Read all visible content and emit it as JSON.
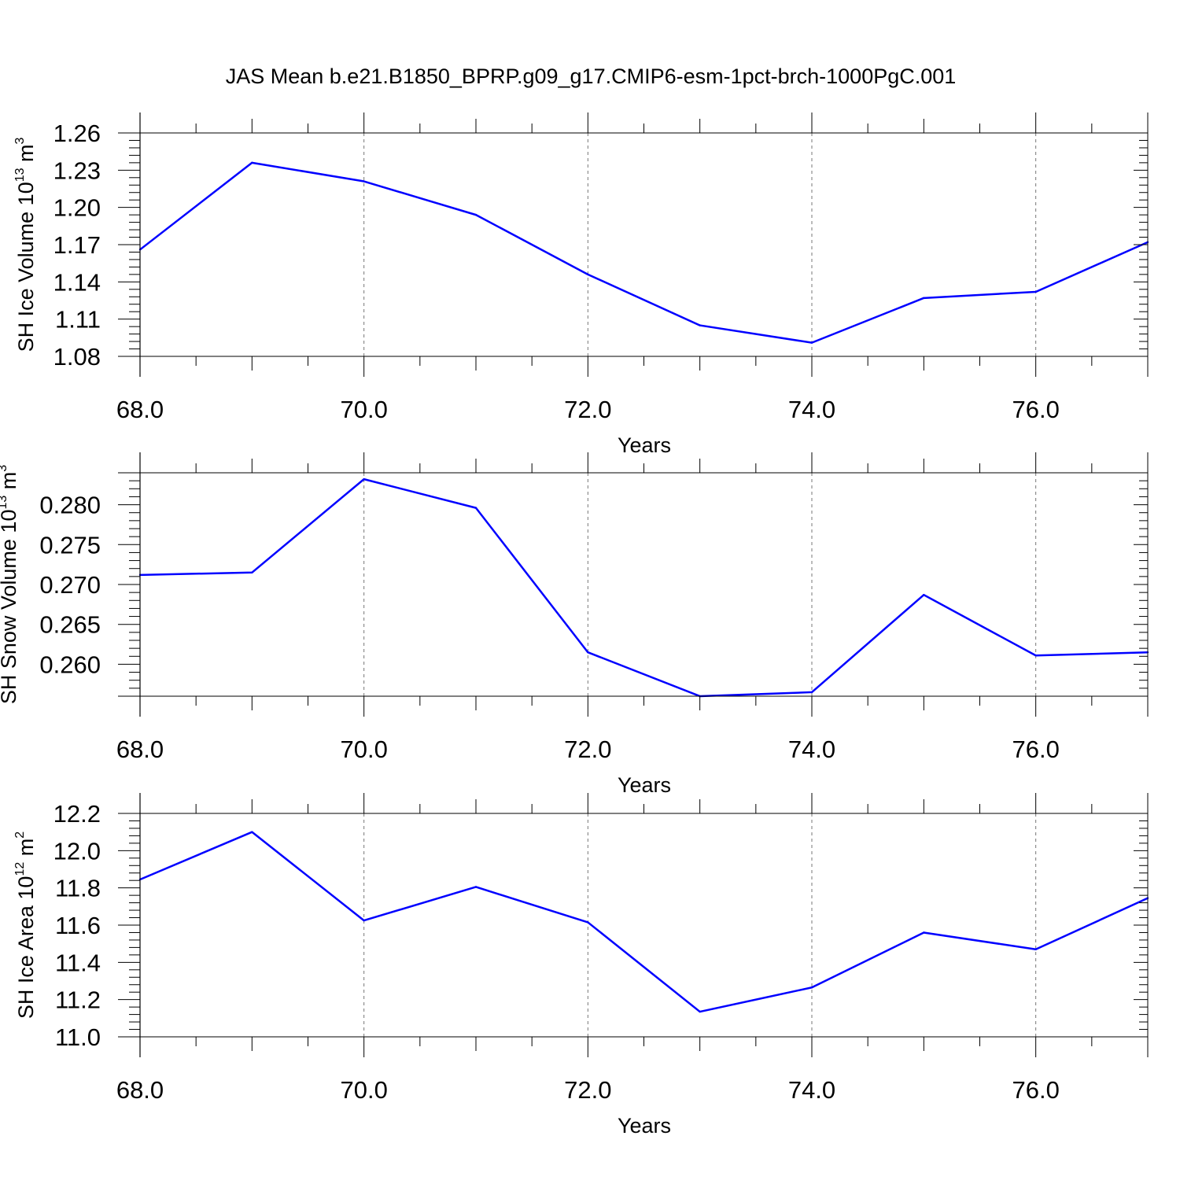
{
  "title": "JAS Mean b.e21.B1850_BPRP.g09_g17.CMIP6-esm-1pct-brch-1000PgC.001",
  "line_color": "#0000ff",
  "chart_data": [
    {
      "type": "line",
      "ylabel_main": "SH Ice Volume 10",
      "ylabel_exp": "13",
      "ylabel_unit": " m",
      "ylabel_unit_exp": "3",
      "xlabel": "Years",
      "xlim": [
        68,
        77
      ],
      "ylim": [
        1.08,
        1.26
      ],
      "x_ticks": [
        "68.0",
        "70.0",
        "72.0",
        "74.0",
        "76.0"
      ],
      "y_ticks": [
        "1.08",
        "1.11",
        "1.14",
        "1.17",
        "1.20",
        "1.23",
        "1.26"
      ],
      "x": [
        68,
        69,
        70,
        71,
        72,
        73,
        74,
        75,
        76,
        77
      ],
      "values": [
        1.166,
        1.236,
        1.221,
        1.194,
        1.146,
        1.105,
        1.091,
        1.127,
        1.132,
        1.172
      ]
    },
    {
      "type": "line",
      "ylabel_main": "SH Snow Volume 10",
      "ylabel_exp": "13",
      "ylabel_unit": " m",
      "ylabel_unit_exp": "3",
      "xlabel": "Years",
      "xlim": [
        68,
        77
      ],
      "ylim": [
        0.256,
        0.284
      ],
      "x_ticks": [
        "68.0",
        "70.0",
        "72.0",
        "74.0",
        "76.0"
      ],
      "y_ticks": [
        "0.260",
        "0.265",
        "0.270",
        "0.275",
        "0.280"
      ],
      "x": [
        68,
        69,
        70,
        71,
        72,
        73,
        74,
        75,
        76,
        77
      ],
      "values": [
        0.2712,
        0.2715,
        0.2832,
        0.2796,
        0.2615,
        0.256,
        0.2565,
        0.2687,
        0.2611,
        0.2615
      ]
    },
    {
      "type": "line",
      "ylabel_main": "SH Ice Area 10",
      "ylabel_exp": "12",
      "ylabel_unit": " m",
      "ylabel_unit_exp": "2",
      "xlabel": "Years",
      "xlim": [
        68,
        77
      ],
      "ylim": [
        11.0,
        12.2
      ],
      "x_ticks": [
        "68.0",
        "70.0",
        "72.0",
        "74.0",
        "76.0"
      ],
      "y_ticks": [
        "11.0",
        "11.2",
        "11.4",
        "11.6",
        "11.8",
        "12.0",
        "12.2"
      ],
      "x": [
        68,
        69,
        70,
        71,
        72,
        73,
        74,
        75,
        76,
        77
      ],
      "values": [
        11.845,
        12.1,
        11.625,
        11.805,
        11.615,
        11.135,
        11.265,
        11.56,
        11.47,
        11.745
      ]
    }
  ]
}
